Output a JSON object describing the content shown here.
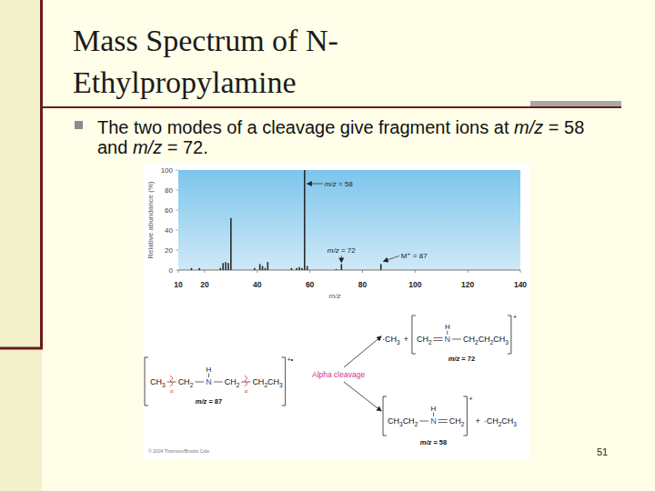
{
  "slide": {
    "title": "Mass Spectrum of N-Ethylpropylamine",
    "bullet": "The two modes of a cleavage give fragment ions at m/z = 58 and m/z = 72.",
    "page_number": "51"
  },
  "chart_data": {
    "type": "bar",
    "x": [
      15,
      18,
      26,
      27,
      28,
      29,
      30,
      39,
      41,
      42,
      43,
      44,
      53,
      55,
      56,
      57,
      58,
      59,
      70,
      72,
      87
    ],
    "values": [
      2,
      2,
      2,
      7,
      8,
      7,
      52,
      2,
      6,
      4,
      2,
      8,
      2,
      2,
      3,
      2,
      100,
      4,
      1,
      6,
      6
    ],
    "color": "#2b2b2b",
    "xlim": [
      10,
      140
    ],
    "xticks": [
      10,
      20,
      40,
      60,
      80,
      100,
      120,
      140
    ],
    "ylim": [
      0,
      100
    ],
    "yticks": [
      0,
      20,
      40,
      60,
      80,
      100
    ],
    "x_label": "m/z",
    "y_label": "Relative abundance (%)",
    "grid": false,
    "annotations": [
      {
        "text": "m/z = 58",
        "x": 58
      },
      {
        "text": "m/z = 72",
        "x": 72
      },
      {
        "text": "M⁺ = 87",
        "x": 87
      }
    ]
  },
  "scheme": {
    "reactant": {
      "groups": [
        "CH3",
        "CH2",
        "N",
        "CH2",
        "CH2CH3"
      ],
      "h": "H",
      "charge": "+•",
      "label": "m/z = 87",
      "alpha": "α"
    },
    "arrow_label": "Alpha cleavage",
    "products": [
      {
        "radical": "·CH3",
        "plus": "+",
        "groups": [
          "CH2",
          "N",
          "CH2CH2CH3"
        ],
        "h": "H",
        "charge": "+",
        "label": "m/z = 72"
      },
      {
        "groups": [
          "CH3CH2",
          "N",
          "CH2"
        ],
        "h": "H",
        "charge": "+",
        "plus": "+",
        "radical": "·CH2CH3",
        "label": "m/z = 58"
      }
    ],
    "copyright": "© 2004 Thomson/Brooks Cole"
  }
}
